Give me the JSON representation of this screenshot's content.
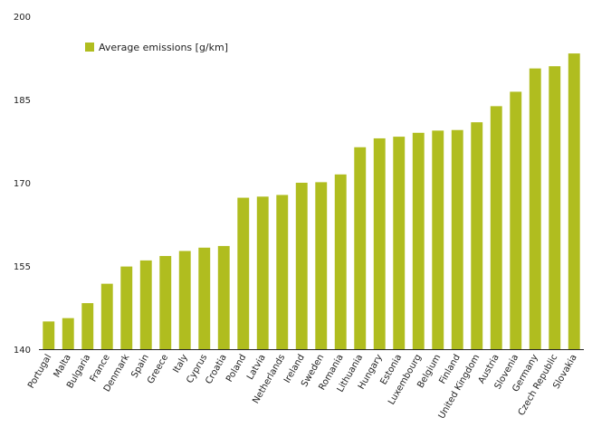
{
  "chart_data": {
    "type": "bar",
    "title": "",
    "xlabel": "",
    "ylabel": "",
    "ylim": [
      140,
      200
    ],
    "yticks": [
      140,
      155,
      170,
      185,
      200
    ],
    "grid": false,
    "legend_position": "top-left",
    "bar_color": "#b0bd1f",
    "categories": [
      "Portugal",
      "Malta",
      "Bulgaria",
      "France",
      "Denmark",
      "Spain",
      "Greece",
      "Italy",
      "Cyprus",
      "Croatia",
      "Poland",
      "Latvia",
      "Netherlands",
      "Ireland",
      "Sweden",
      "Romania",
      "Lithuania",
      "Hungary",
      "Estonia",
      "Luxembourg",
      "Belgium",
      "Finland",
      "United Kingdom",
      "Austria",
      "Slovenia",
      "Germany",
      "Czech Republic",
      "Slovakia"
    ],
    "series": [
      {
        "name": "Average emissions [g/km]",
        "values": [
          145.0,
          145.6,
          148.3,
          151.8,
          154.9,
          156.0,
          156.8,
          157.7,
          158.3,
          158.6,
          167.3,
          167.5,
          167.8,
          170.0,
          170.1,
          171.5,
          176.4,
          178.0,
          178.3,
          179.0,
          179.4,
          179.5,
          180.9,
          183.8,
          186.4,
          190.6,
          191.0,
          193.3
        ]
      }
    ]
  }
}
